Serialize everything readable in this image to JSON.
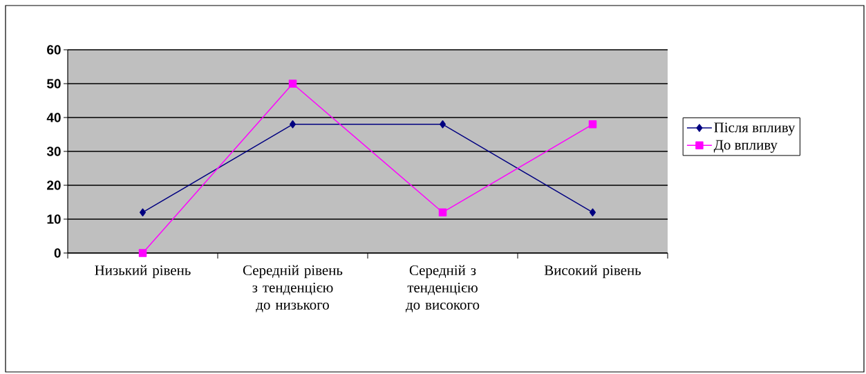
{
  "chart_data": {
    "type": "line",
    "categories": [
      "Низький рівень",
      "Середній рівень з тенденцією до низького",
      "Середній з тенденцією до високого",
      "Високий рівень"
    ],
    "series": [
      {
        "name": "Після впливу",
        "color": "#000080",
        "marker": "diamond",
        "values": [
          12,
          38,
          38,
          12
        ]
      },
      {
        "name": "До впливу",
        "color": "#ff00ff",
        "marker": "square",
        "values": [
          0,
          50,
          12,
          38
        ]
      }
    ],
    "ylim": [
      0,
      60
    ],
    "yticks": [
      0,
      10,
      20,
      30,
      40,
      50,
      60
    ],
    "grid": "y",
    "legend": "right",
    "line_style": "solid"
  }
}
